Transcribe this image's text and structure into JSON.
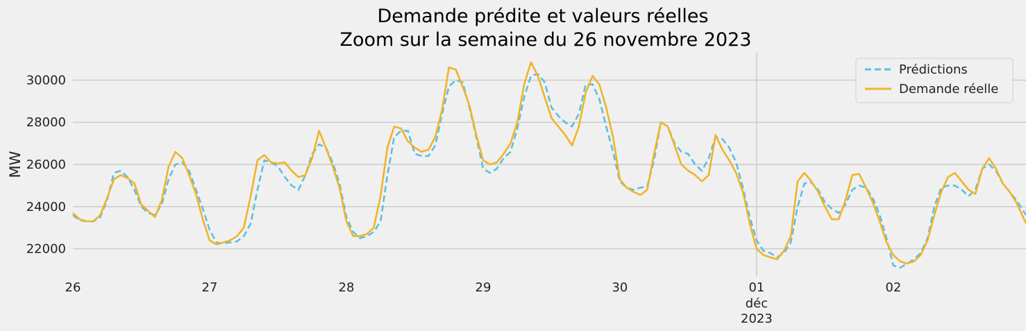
{
  "chart_data": {
    "type": "line",
    "title": "Demande prédite et valeurs réelles",
    "subtitle": "Zoom sur la semaine du 26 novembre 2023",
    "xlabel": "",
    "ylabel": "MW",
    "ylim": [
      20700,
      31300
    ],
    "y_ticks": [
      22000,
      24000,
      26000,
      28000,
      30000
    ],
    "x_range_days": [
      26,
      32.97
    ],
    "x_ticks": [
      {
        "day": 26,
        "label": "26"
      },
      {
        "day": 27,
        "label": "27"
      },
      {
        "day": 28,
        "label": "28"
      },
      {
        "day": 29,
        "label": "29"
      },
      {
        "day": 30,
        "label": "30"
      },
      {
        "day": 31,
        "label": "01",
        "sub": [
          "déc",
          "2023"
        ]
      },
      {
        "day": 32,
        "label": "02"
      }
    ],
    "vertical_marker_day": 31,
    "grid": true,
    "legend_position": "top-right",
    "series": [
      {
        "name": "Prédictions",
        "color": "#5bc0de",
        "style": "dashed",
        "points": [
          [
            26.0,
            23600
          ],
          [
            26.05,
            23350
          ],
          [
            26.1,
            23300
          ],
          [
            26.15,
            23300
          ],
          [
            26.2,
            23500
          ],
          [
            26.25,
            24300
          ],
          [
            26.3,
            25600
          ],
          [
            26.35,
            25700
          ],
          [
            26.4,
            25400
          ],
          [
            26.45,
            24800
          ],
          [
            26.5,
            24000
          ],
          [
            26.55,
            23700
          ],
          [
            26.6,
            23600
          ],
          [
            26.65,
            24100
          ],
          [
            26.7,
            25300
          ],
          [
            26.75,
            26000
          ],
          [
            26.8,
            26100
          ],
          [
            26.85,
            25700
          ],
          [
            26.9,
            24800
          ],
          [
            26.95,
            23900
          ],
          [
            27.0,
            22900
          ],
          [
            27.05,
            22300
          ],
          [
            27.1,
            22250
          ],
          [
            27.15,
            22300
          ],
          [
            27.2,
            22350
          ],
          [
            27.25,
            22600
          ],
          [
            27.3,
            23200
          ],
          [
            27.35,
            24800
          ],
          [
            27.4,
            26200
          ],
          [
            27.45,
            26100
          ],
          [
            27.5,
            25900
          ],
          [
            27.55,
            25400
          ],
          [
            27.6,
            25000
          ],
          [
            27.65,
            24800
          ],
          [
            27.7,
            25500
          ],
          [
            27.75,
            26500
          ],
          [
            27.8,
            26950
          ],
          [
            27.85,
            26800
          ],
          [
            27.9,
            26100
          ],
          [
            27.95,
            25100
          ],
          [
            28.0,
            23500
          ],
          [
            28.05,
            22800
          ],
          [
            28.1,
            22500
          ],
          [
            28.15,
            22600
          ],
          [
            28.2,
            22800
          ],
          [
            28.25,
            23300
          ],
          [
            28.3,
            25500
          ],
          [
            28.35,
            27300
          ],
          [
            28.4,
            27600
          ],
          [
            28.45,
            27600
          ],
          [
            28.5,
            26500
          ],
          [
            28.55,
            26400
          ],
          [
            28.6,
            26400
          ],
          [
            28.65,
            26900
          ],
          [
            28.7,
            28400
          ],
          [
            28.75,
            29700
          ],
          [
            28.8,
            30000
          ],
          [
            28.85,
            29900
          ],
          [
            28.9,
            28700
          ],
          [
            28.95,
            27300
          ],
          [
            29.0,
            25800
          ],
          [
            29.05,
            25600
          ],
          [
            29.1,
            25800
          ],
          [
            29.15,
            26300
          ],
          [
            29.2,
            26600
          ],
          [
            29.25,
            27700
          ],
          [
            29.3,
            29200
          ],
          [
            29.35,
            30200
          ],
          [
            29.4,
            30300
          ],
          [
            29.45,
            29900
          ],
          [
            29.5,
            28700
          ],
          [
            29.55,
            28300
          ],
          [
            29.6,
            28000
          ],
          [
            29.65,
            27800
          ],
          [
            29.7,
            28400
          ],
          [
            29.75,
            29800
          ],
          [
            29.8,
            29800
          ],
          [
            29.85,
            29100
          ],
          [
            29.9,
            27800
          ],
          [
            29.95,
            26600
          ],
          [
            30.0,
            25200
          ],
          [
            30.05,
            24900
          ],
          [
            30.1,
            24800
          ],
          [
            30.15,
            24900
          ],
          [
            30.2,
            24950
          ],
          [
            30.25,
            26200
          ],
          [
            30.3,
            28000
          ],
          [
            30.35,
            27800
          ],
          [
            30.4,
            27000
          ],
          [
            30.45,
            26600
          ],
          [
            30.5,
            26500
          ],
          [
            30.55,
            26000
          ],
          [
            30.6,
            25700
          ],
          [
            30.65,
            26300
          ],
          [
            30.7,
            27300
          ],
          [
            30.75,
            27200
          ],
          [
            30.8,
            26800
          ],
          [
            30.85,
            26100
          ],
          [
            30.9,
            24900
          ],
          [
            30.95,
            23500
          ],
          [
            31.0,
            22400
          ],
          [
            31.05,
            21900
          ],
          [
            31.1,
            21800
          ],
          [
            31.15,
            21600
          ],
          [
            31.2,
            21800
          ],
          [
            31.25,
            22300
          ],
          [
            31.3,
            24000
          ],
          [
            31.35,
            25100
          ],
          [
            31.4,
            25150
          ],
          [
            31.45,
            24800
          ],
          [
            31.5,
            24200
          ],
          [
            31.55,
            23900
          ],
          [
            31.6,
            23700
          ],
          [
            31.65,
            24100
          ],
          [
            31.7,
            24800
          ],
          [
            31.75,
            25000
          ],
          [
            31.8,
            24900
          ],
          [
            31.85,
            24400
          ],
          [
            31.9,
            23600
          ],
          [
            31.95,
            22500
          ],
          [
            32.0,
            21200
          ],
          [
            32.05,
            21100
          ],
          [
            32.1,
            21300
          ],
          [
            32.15,
            21500
          ],
          [
            32.2,
            21800
          ],
          [
            32.25,
            22500
          ],
          [
            32.3,
            24000
          ],
          [
            32.35,
            24900
          ],
          [
            32.4,
            25000
          ],
          [
            32.45,
            25000
          ],
          [
            32.5,
            24800
          ],
          [
            32.55,
            24500
          ],
          [
            32.6,
            24800
          ],
          [
            32.65,
            25800
          ],
          [
            32.7,
            26000
          ],
          [
            32.75,
            25700
          ],
          [
            32.8,
            25100
          ],
          [
            32.85,
            24700
          ],
          [
            32.9,
            24300
          ],
          [
            32.97,
            23600
          ]
        ]
      },
      {
        "name": "Demande réelle",
        "color": "#f0b429",
        "style": "solid",
        "points": [
          [
            26.0,
            23700
          ],
          [
            26.05,
            23400
          ],
          [
            26.1,
            23300
          ],
          [
            26.15,
            23300
          ],
          [
            26.2,
            23600
          ],
          [
            26.25,
            24400
          ],
          [
            26.3,
            25300
          ],
          [
            26.35,
            25500
          ],
          [
            26.4,
            25350
          ],
          [
            26.45,
            25100
          ],
          [
            26.5,
            24100
          ],
          [
            26.55,
            23800
          ],
          [
            26.6,
            23500
          ],
          [
            26.65,
            24300
          ],
          [
            26.7,
            25900
          ],
          [
            26.75,
            26600
          ],
          [
            26.8,
            26300
          ],
          [
            26.85,
            25500
          ],
          [
            26.9,
            24600
          ],
          [
            26.95,
            23400
          ],
          [
            27.0,
            22400
          ],
          [
            27.05,
            22200
          ],
          [
            27.1,
            22300
          ],
          [
            27.15,
            22400
          ],
          [
            27.2,
            22600
          ],
          [
            27.25,
            23000
          ],
          [
            27.3,
            24500
          ],
          [
            27.35,
            26200
          ],
          [
            27.4,
            26450
          ],
          [
            27.45,
            26100
          ],
          [
            27.5,
            26050
          ],
          [
            27.55,
            26100
          ],
          [
            27.6,
            25700
          ],
          [
            27.65,
            25400
          ],
          [
            27.7,
            25500
          ],
          [
            27.75,
            26300
          ],
          [
            27.8,
            27600
          ],
          [
            27.85,
            26800
          ],
          [
            27.9,
            25900
          ],
          [
            27.95,
            24900
          ],
          [
            28.0,
            23300
          ],
          [
            28.05,
            22600
          ],
          [
            28.1,
            22600
          ],
          [
            28.15,
            22700
          ],
          [
            28.2,
            23000
          ],
          [
            28.25,
            24500
          ],
          [
            28.3,
            26800
          ],
          [
            28.35,
            27800
          ],
          [
            28.4,
            27700
          ],
          [
            28.45,
            27100
          ],
          [
            28.5,
            26800
          ],
          [
            28.55,
            26600
          ],
          [
            28.6,
            26700
          ],
          [
            28.65,
            27300
          ],
          [
            28.7,
            28600
          ],
          [
            28.75,
            30600
          ],
          [
            28.8,
            30500
          ],
          [
            28.85,
            29700
          ],
          [
            28.9,
            28800
          ],
          [
            28.95,
            27400
          ],
          [
            29.0,
            26200
          ],
          [
            29.05,
            26000
          ],
          [
            29.1,
            26100
          ],
          [
            29.15,
            26500
          ],
          [
            29.2,
            27000
          ],
          [
            29.25,
            28000
          ],
          [
            29.3,
            29800
          ],
          [
            29.35,
            30850
          ],
          [
            29.4,
            30200
          ],
          [
            29.45,
            29200
          ],
          [
            29.5,
            28200
          ],
          [
            29.55,
            27800
          ],
          [
            29.6,
            27400
          ],
          [
            29.65,
            26900
          ],
          [
            29.7,
            27800
          ],
          [
            29.75,
            29400
          ],
          [
            29.8,
            30200
          ],
          [
            29.85,
            29800
          ],
          [
            29.9,
            28700
          ],
          [
            29.95,
            27300
          ],
          [
            30.0,
            25300
          ],
          [
            30.05,
            24900
          ],
          [
            30.1,
            24700
          ],
          [
            30.15,
            24550
          ],
          [
            30.2,
            24800
          ],
          [
            30.25,
            26500
          ],
          [
            30.3,
            28000
          ],
          [
            30.35,
            27800
          ],
          [
            30.4,
            26900
          ],
          [
            30.45,
            26000
          ],
          [
            30.5,
            25700
          ],
          [
            30.55,
            25500
          ],
          [
            30.6,
            25200
          ],
          [
            30.65,
            25500
          ],
          [
            30.7,
            27400
          ],
          [
            30.75,
            26700
          ],
          [
            30.8,
            26200
          ],
          [
            30.85,
            25600
          ],
          [
            30.9,
            24700
          ],
          [
            30.95,
            23200
          ],
          [
            31.0,
            22000
          ],
          [
            31.05,
            21700
          ],
          [
            31.1,
            21600
          ],
          [
            31.15,
            21500
          ],
          [
            31.2,
            21900
          ],
          [
            31.25,
            22600
          ],
          [
            31.3,
            25200
          ],
          [
            31.35,
            25600
          ],
          [
            31.4,
            25200
          ],
          [
            31.45,
            24700
          ],
          [
            31.5,
            24000
          ],
          [
            31.55,
            23400
          ],
          [
            31.6,
            23400
          ],
          [
            31.65,
            24300
          ],
          [
            31.7,
            25500
          ],
          [
            31.75,
            25550
          ],
          [
            31.8,
            24900
          ],
          [
            31.85,
            24200
          ],
          [
            31.9,
            23300
          ],
          [
            31.95,
            22300
          ],
          [
            32.0,
            21700
          ],
          [
            32.05,
            21400
          ],
          [
            32.1,
            21300
          ],
          [
            32.15,
            21400
          ],
          [
            32.2,
            21700
          ],
          [
            32.25,
            22400
          ],
          [
            32.3,
            23600
          ],
          [
            32.35,
            24700
          ],
          [
            32.4,
            25400
          ],
          [
            32.45,
            25600
          ],
          [
            32.5,
            25200
          ],
          [
            32.55,
            24800
          ],
          [
            32.6,
            24600
          ],
          [
            32.65,
            25800
          ],
          [
            32.7,
            26300
          ],
          [
            32.75,
            25800
          ],
          [
            32.8,
            25100
          ],
          [
            32.85,
            24700
          ],
          [
            32.9,
            24200
          ],
          [
            32.97,
            23200
          ]
        ]
      }
    ]
  }
}
